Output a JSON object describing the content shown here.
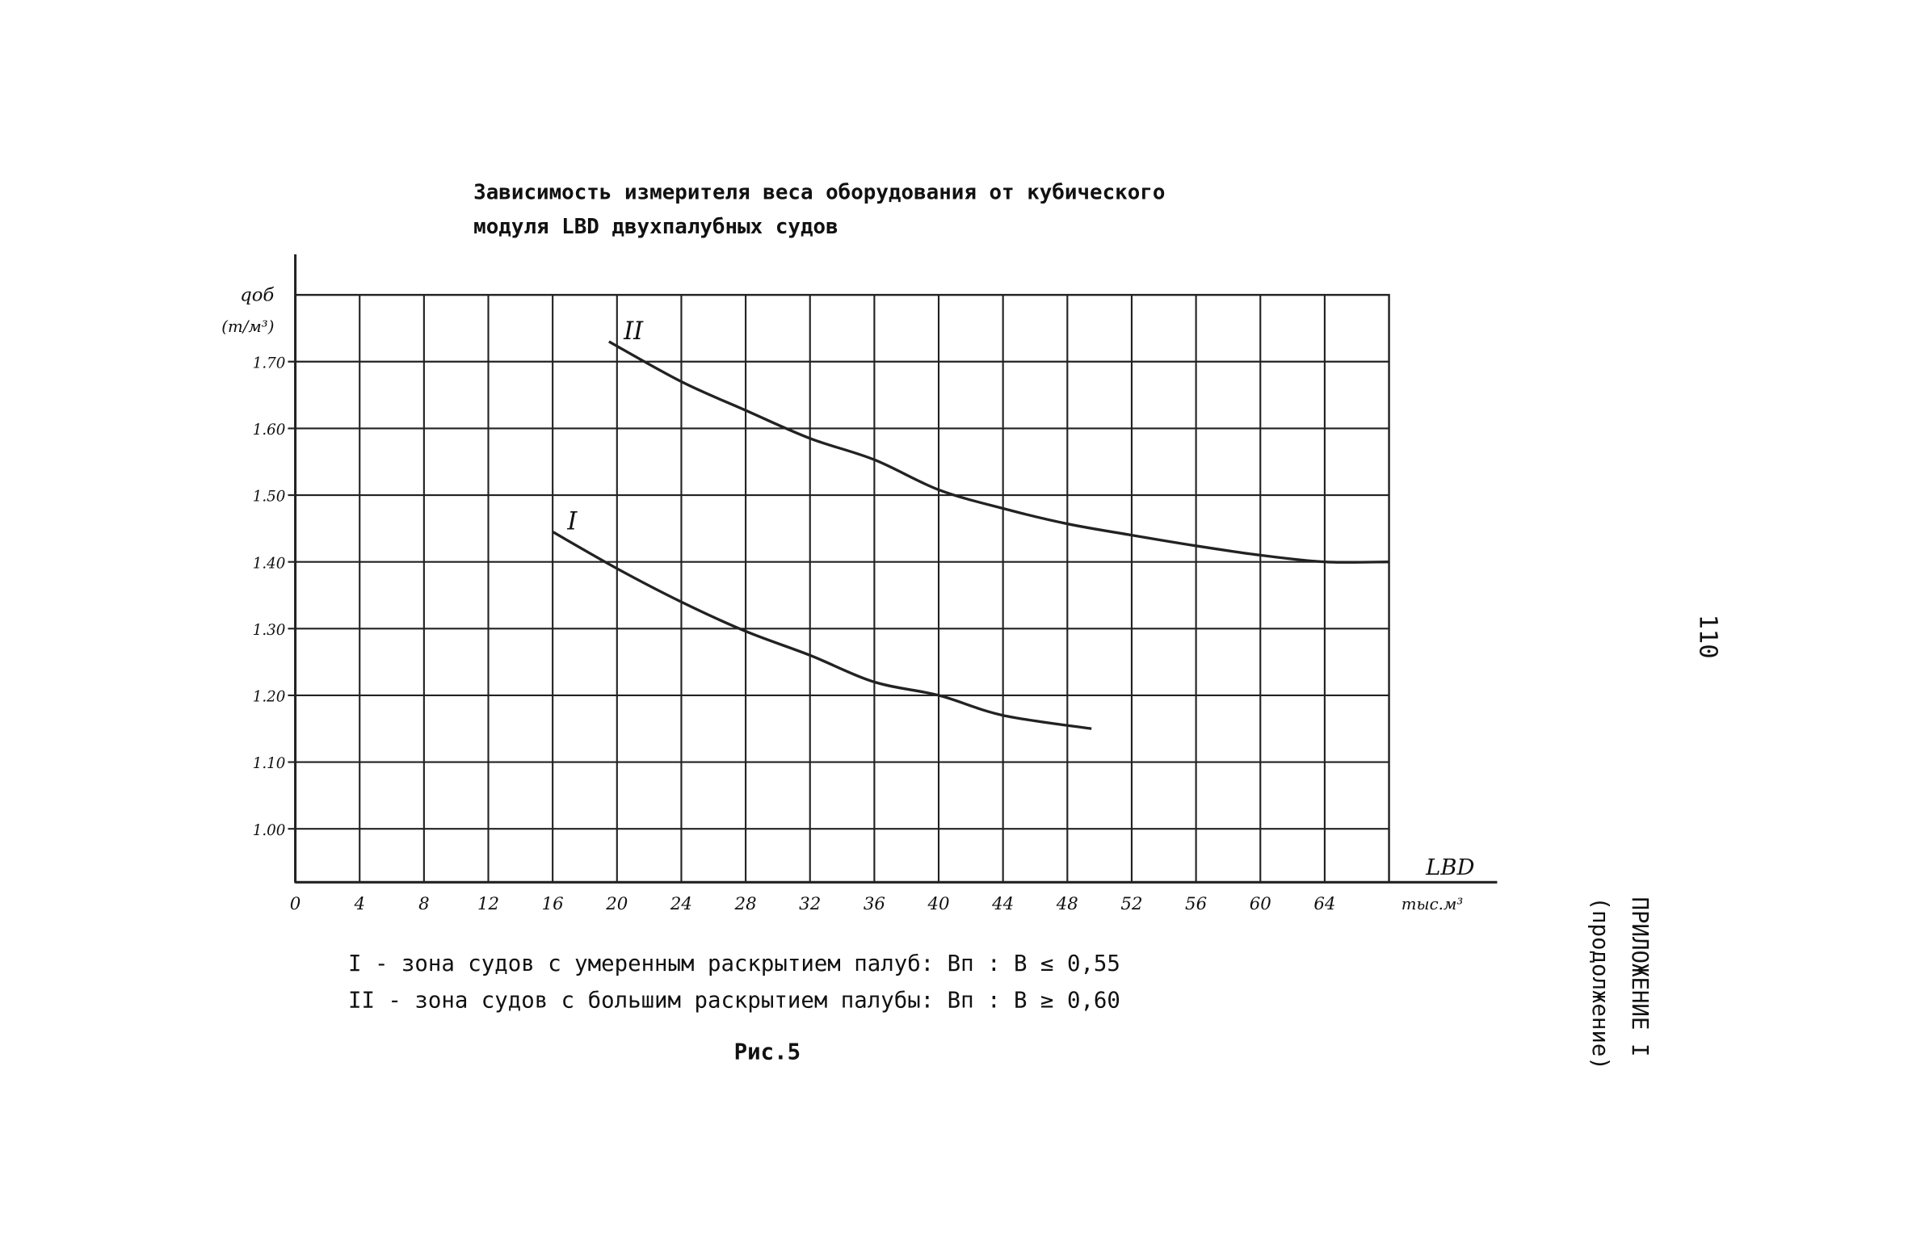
{
  "chart_data": {
    "type": "line",
    "title": "Зависимость измерителя веса оборудования от кубического",
    "subtitle": "модуля LBD двухпалубных судов",
    "y_label": "qоб",
    "y_unit": "(т/м³)",
    "x_label": "LBD",
    "x_unit": "тыс.м³",
    "xlim": [
      0,
      68
    ],
    "ylim": [
      0.92,
      1.8
    ],
    "xticks": [
      0,
      4,
      8,
      12,
      16,
      20,
      24,
      28,
      32,
      36,
      40,
      44,
      48,
      52,
      56,
      60,
      64
    ],
    "yticks": [
      {
        "value": 1.0,
        "label": "1.00"
      },
      {
        "value": 1.1,
        "label": "1.10"
      },
      {
        "value": 1.2,
        "label": "1.20"
      },
      {
        "value": 1.3,
        "label": "1.30"
      },
      {
        "value": 1.4,
        "label": "1.40"
      },
      {
        "value": 1.5,
        "label": "1.50"
      },
      {
        "value": 1.6,
        "label": "1.60"
      },
      {
        "value": 1.7,
        "label": "1.70"
      }
    ],
    "grid": true,
    "series": [
      {
        "name": "I",
        "color": "#222222",
        "x": [
          16,
          20,
          24,
          28,
          32,
          36,
          40,
          44,
          49.5
        ],
        "values": [
          1.445,
          1.39,
          1.34,
          1.296,
          1.26,
          1.22,
          1.2,
          1.17,
          1.15
        ]
      },
      {
        "name": "II",
        "color": "#222222",
        "x": [
          19.5,
          24,
          28,
          32,
          36,
          40,
          44,
          48,
          52,
          56,
          60,
          64,
          68
        ],
        "values": [
          1.73,
          1.67,
          1.627,
          1.585,
          1.553,
          1.508,
          1.48,
          1.457,
          1.44,
          1.424,
          1.41,
          1.4,
          1.4
        ]
      }
    ],
    "annotations": [
      "I - зона судов с умеренным раскрытием палуб: Bп : B ≤ 0,55",
      "II - зона судов с большим раскрытием палубы: Bп : B ≥ 0,60"
    ],
    "caption": "Рис.5",
    "page_number": "110",
    "appendix": "ПРИЛОЖЕНИЕ I",
    "appendix_note": "(продолжение)"
  }
}
